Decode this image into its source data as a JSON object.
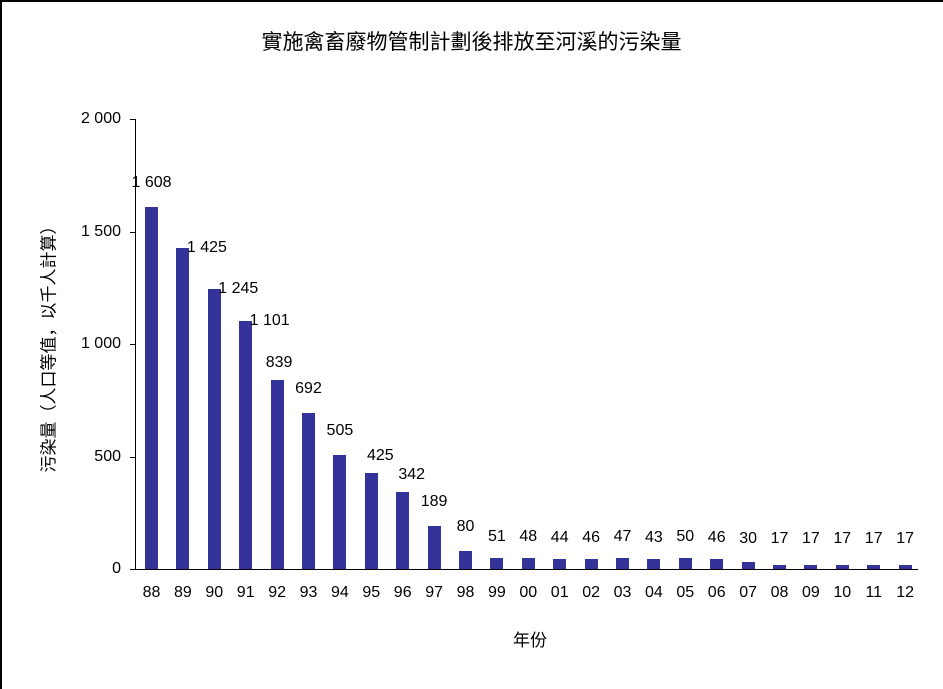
{
  "chart_data": {
    "type": "bar",
    "title": "實施禽畜廢物管制計劃後排放至河溪的污染量",
    "xlabel": "年份",
    "ylabel": "污染量（人口等值，以千人計算）",
    "categories": [
      "88",
      "89",
      "90",
      "91",
      "92",
      "93",
      "94",
      "95",
      "96",
      "97",
      "98",
      "99",
      "00",
      "01",
      "02",
      "03",
      "04",
      "05",
      "06",
      "07",
      "08",
      "09",
      "10",
      "11",
      "12"
    ],
    "values": [
      1608,
      1425,
      1245,
      1101,
      839,
      692,
      505,
      425,
      342,
      189,
      80,
      51,
      48,
      44,
      46,
      47,
      43,
      50,
      46,
      30,
      17,
      17,
      17,
      17,
      17
    ],
    "value_labels": [
      "1 608",
      "1 425",
      "1 245",
      "1 101",
      "839",
      "692",
      "505",
      "425",
      "342",
      "189",
      "80",
      "51",
      "48",
      "44",
      "46",
      "47",
      "43",
      "50",
      "46",
      "30",
      "17",
      "17",
      "17",
      "17",
      "17"
    ],
    "ylim": [
      0,
      2000
    ],
    "yticks": [
      0,
      500,
      1000,
      1500,
      2000
    ],
    "ytick_labels": [
      "0",
      "500",
      "1 000",
      "1 500",
      "2 000"
    ],
    "grid": false,
    "legend": null,
    "bar_color": "#333399"
  }
}
